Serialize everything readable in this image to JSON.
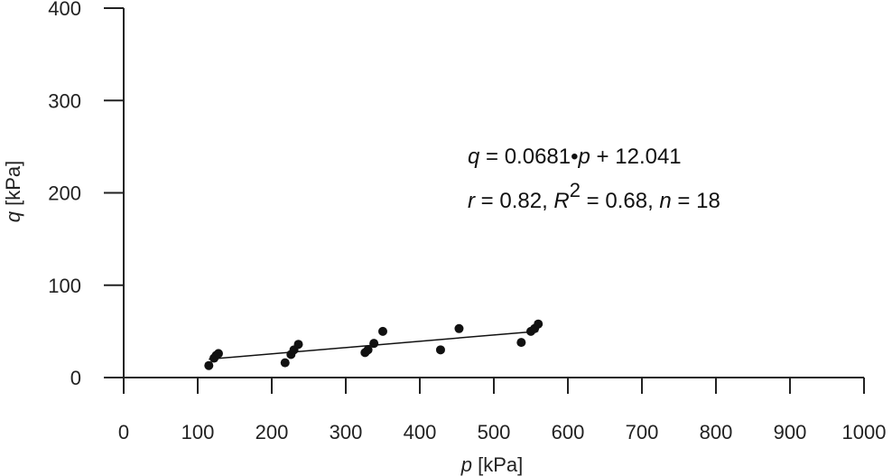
{
  "chart_data": {
    "type": "scatter",
    "title": "",
    "xlabel_var": "p",
    "xlabel_unit": " [kPa]",
    "ylabel_var": "q",
    "ylabel_unit": " [kPa]",
    "xlim": [
      0,
      1000
    ],
    "ylim": [
      0,
      400
    ],
    "x_ticks": [
      0,
      100,
      200,
      300,
      400,
      500,
      600,
      700,
      800,
      900,
      1000
    ],
    "y_ticks": [
      0,
      100,
      200,
      300,
      400
    ],
    "grid": false,
    "colors": {
      "points": "#111111",
      "line": "#111111",
      "axis": "#222222"
    },
    "points": {
      "x": [
        115,
        122,
        125,
        128,
        218,
        226,
        230,
        236,
        326,
        330,
        338,
        350,
        428,
        453,
        537,
        550,
        555,
        560
      ],
      "y": [
        13,
        21,
        24,
        26,
        16,
        25,
        30,
        36,
        27,
        30,
        37,
        50,
        30,
        53,
        38,
        50,
        53,
        58
      ]
    },
    "fit": {
      "slope": 0.0681,
      "intercept": 12.041,
      "x_range": [
        115,
        560
      ]
    },
    "annotation": {
      "line1": {
        "var_q": "q",
        "text1": " = 0.0681•",
        "var_p": "p",
        "text2": " + 12.041"
      },
      "line2": {
        "var_r": "r",
        "text1": " = 0.82, ",
        "var_R": "R",
        "sup": "2",
        "text2": " = 0.68, ",
        "var_n": "n",
        "text3": " = 18"
      }
    }
  }
}
